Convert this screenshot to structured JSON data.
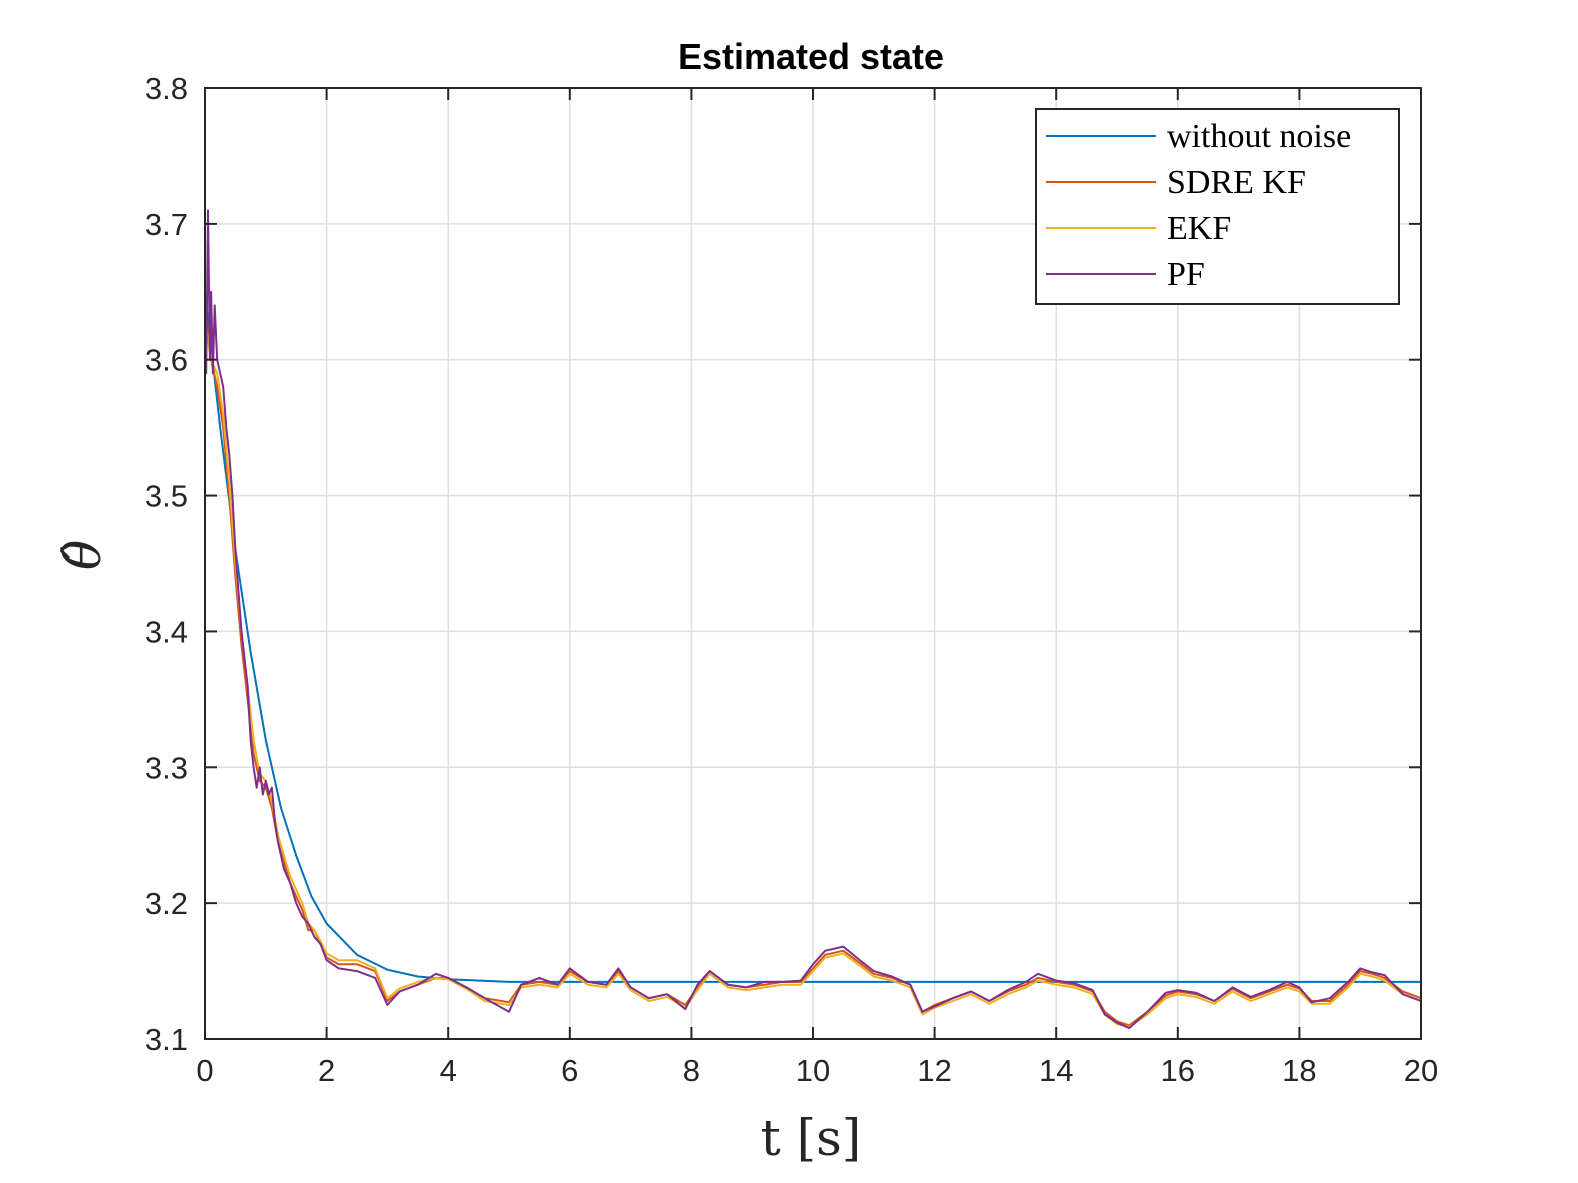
{
  "chart_data": {
    "type": "line",
    "title": "Estimated state",
    "xlabel": "t [s]",
    "ylabel": "θ̂",
    "xlim": [
      0,
      20
    ],
    "ylim": [
      3.1,
      3.8
    ],
    "xticks": [
      0,
      2,
      4,
      6,
      8,
      10,
      12,
      14,
      16,
      18,
      20
    ],
    "yticks": [
      3.1,
      3.2,
      3.3,
      3.4,
      3.5,
      3.6,
      3.7,
      3.8
    ],
    "xtick_labels": [
      "0",
      "2",
      "4",
      "6",
      "8",
      "10",
      "12",
      "14",
      "16",
      "18",
      "20"
    ],
    "ytick_labels": [
      "3.1",
      "3.2",
      "3.3",
      "3.4",
      "3.5",
      "3.6",
      "3.7",
      "3.8"
    ],
    "grid": true,
    "legend_position": "top-right",
    "series": [
      {
        "name": "without noise",
        "color": "#0072BD",
        "x": [
          0,
          0.25,
          0.5,
          0.75,
          1.0,
          1.25,
          1.5,
          1.75,
          2.0,
          2.5,
          3.0,
          3.5,
          4.0,
          5.0,
          6.0,
          8.0,
          10.0,
          12.0,
          14.0,
          16.0,
          18.0,
          20.0
        ],
        "y": [
          3.65,
          3.55,
          3.46,
          3.385,
          3.32,
          3.27,
          3.235,
          3.205,
          3.185,
          3.162,
          3.151,
          3.146,
          3.144,
          3.142,
          3.142,
          3.142,
          3.142,
          3.142,
          3.142,
          3.142,
          3.142,
          3.142
        ]
      },
      {
        "name": "SDRE KF",
        "color": "#D95319",
        "x": [
          0,
          0.1,
          0.2,
          0.3,
          0.4,
          0.5,
          0.6,
          0.7,
          0.8,
          0.9,
          1.0,
          1.1,
          1.2,
          1.3,
          1.4,
          1.5,
          1.6,
          1.7,
          1.8,
          1.9,
          2.0,
          2.2,
          2.5,
          2.8,
          3.0,
          3.2,
          3.5,
          3.8,
          4.0,
          4.3,
          4.6,
          5.0,
          5.2,
          5.5,
          5.8,
          6.0,
          6.3,
          6.6,
          6.8,
          7.0,
          7.3,
          7.6,
          7.9,
          8.1,
          8.3,
          8.6,
          8.9,
          9.2,
          9.5,
          9.8,
          10.0,
          10.2,
          10.5,
          10.8,
          11.0,
          11.3,
          11.6,
          11.8,
          12.0,
          12.3,
          12.6,
          12.9,
          13.2,
          13.5,
          13.7,
          14.0,
          14.3,
          14.6,
          14.8,
          15.0,
          15.2,
          15.5,
          15.8,
          16.0,
          16.3,
          16.6,
          16.9,
          17.2,
          17.5,
          17.8,
          18.0,
          18.2,
          18.5,
          18.8,
          19.0,
          19.2,
          19.4,
          19.7,
          20.0
        ],
        "y": [
          3.64,
          3.6,
          3.58,
          3.55,
          3.5,
          3.44,
          3.39,
          3.35,
          3.31,
          3.29,
          3.285,
          3.27,
          3.245,
          3.23,
          3.215,
          3.205,
          3.195,
          3.18,
          3.18,
          3.17,
          3.16,
          3.155,
          3.155,
          3.15,
          3.128,
          3.135,
          3.14,
          3.145,
          3.145,
          3.138,
          3.13,
          3.127,
          3.14,
          3.142,
          3.14,
          3.15,
          3.142,
          3.14,
          3.15,
          3.138,
          3.13,
          3.133,
          3.125,
          3.138,
          3.15,
          3.14,
          3.138,
          3.14,
          3.142,
          3.142,
          3.152,
          3.162,
          3.165,
          3.155,
          3.148,
          3.145,
          3.14,
          3.12,
          3.125,
          3.13,
          3.135,
          3.128,
          3.135,
          3.14,
          3.145,
          3.142,
          3.14,
          3.135,
          3.12,
          3.113,
          3.11,
          3.12,
          3.132,
          3.135,
          3.133,
          3.128,
          3.137,
          3.13,
          3.135,
          3.14,
          3.137,
          3.128,
          3.128,
          3.14,
          3.15,
          3.148,
          3.145,
          3.135,
          3.13
        ]
      },
      {
        "name": "EKF",
        "color": "#EDB120",
        "x": [
          0,
          0.1,
          0.2,
          0.3,
          0.4,
          0.5,
          0.6,
          0.7,
          0.8,
          0.9,
          1.0,
          1.1,
          1.2,
          1.3,
          1.4,
          1.5,
          1.6,
          1.7,
          1.8,
          1.9,
          2.0,
          2.2,
          2.5,
          2.8,
          3.0,
          3.2,
          3.5,
          3.8,
          4.0,
          4.3,
          4.6,
          5.0,
          5.2,
          5.5,
          5.8,
          6.0,
          6.3,
          6.6,
          6.8,
          7.0,
          7.3,
          7.6,
          7.9,
          8.1,
          8.3,
          8.6,
          8.9,
          9.2,
          9.5,
          9.8,
          10.0,
          10.2,
          10.5,
          10.8,
          11.0,
          11.3,
          11.6,
          11.8,
          12.0,
          12.3,
          12.6,
          12.9,
          13.2,
          13.5,
          13.7,
          14.0,
          14.3,
          14.6,
          14.8,
          15.0,
          15.2,
          15.5,
          15.8,
          16.0,
          16.3,
          16.6,
          16.9,
          17.2,
          17.5,
          17.8,
          18.0,
          18.2,
          18.5,
          18.8,
          19.0,
          19.2,
          19.4,
          19.7,
          20.0
        ],
        "y": [
          3.63,
          3.6,
          3.59,
          3.56,
          3.51,
          3.45,
          3.4,
          3.36,
          3.32,
          3.295,
          3.29,
          3.275,
          3.25,
          3.235,
          3.22,
          3.21,
          3.2,
          3.185,
          3.18,
          3.172,
          3.163,
          3.158,
          3.158,
          3.152,
          3.13,
          3.137,
          3.142,
          3.145,
          3.144,
          3.137,
          3.128,
          3.125,
          3.138,
          3.14,
          3.138,
          3.148,
          3.14,
          3.138,
          3.148,
          3.136,
          3.128,
          3.131,
          3.123,
          3.136,
          3.148,
          3.138,
          3.136,
          3.138,
          3.14,
          3.14,
          3.15,
          3.16,
          3.163,
          3.153,
          3.146,
          3.143,
          3.138,
          3.118,
          3.123,
          3.128,
          3.133,
          3.126,
          3.133,
          3.138,
          3.143,
          3.14,
          3.138,
          3.133,
          3.118,
          3.111,
          3.109,
          3.118,
          3.13,
          3.133,
          3.131,
          3.126,
          3.135,
          3.128,
          3.133,
          3.138,
          3.135,
          3.126,
          3.126,
          3.138,
          3.148,
          3.146,
          3.143,
          3.133,
          3.128
        ]
      },
      {
        "name": "PF",
        "color": "#7E2F8E",
        "x": [
          0,
          0.02,
          0.05,
          0.08,
          0.1,
          0.13,
          0.16,
          0.2,
          0.25,
          0.3,
          0.35,
          0.4,
          0.45,
          0.5,
          0.55,
          0.6,
          0.65,
          0.7,
          0.75,
          0.8,
          0.85,
          0.9,
          0.95,
          1.0,
          1.05,
          1.1,
          1.15,
          1.2,
          1.3,
          1.4,
          1.5,
          1.6,
          1.7,
          1.8,
          1.9,
          2.0,
          2.2,
          2.5,
          2.8,
          3.0,
          3.2,
          3.5,
          3.8,
          4.0,
          4.3,
          4.6,
          5.0,
          5.2,
          5.5,
          5.8,
          6.0,
          6.3,
          6.6,
          6.8,
          7.0,
          7.3,
          7.6,
          7.9,
          8.1,
          8.3,
          8.6,
          8.9,
          9.2,
          9.5,
          9.8,
          10.0,
          10.2,
          10.5,
          10.8,
          11.0,
          11.3,
          11.6,
          11.8,
          12.0,
          12.3,
          12.6,
          12.9,
          13.2,
          13.5,
          13.7,
          14.0,
          14.3,
          14.6,
          14.8,
          15.0,
          15.2,
          15.5,
          15.8,
          16.0,
          16.3,
          16.6,
          16.9,
          17.2,
          17.5,
          17.8,
          18.0,
          18.2,
          18.5,
          18.8,
          19.0,
          19.2,
          19.4,
          19.7,
          20.0
        ],
        "y": [
          3.64,
          3.59,
          3.71,
          3.6,
          3.65,
          3.59,
          3.64,
          3.6,
          3.59,
          3.58,
          3.55,
          3.53,
          3.5,
          3.46,
          3.43,
          3.4,
          3.38,
          3.36,
          3.32,
          3.3,
          3.285,
          3.3,
          3.28,
          3.29,
          3.28,
          3.285,
          3.26,
          3.245,
          3.225,
          3.215,
          3.2,
          3.19,
          3.185,
          3.175,
          3.17,
          3.158,
          3.152,
          3.15,
          3.145,
          3.125,
          3.135,
          3.14,
          3.148,
          3.145,
          3.138,
          3.13,
          3.12,
          3.14,
          3.145,
          3.14,
          3.152,
          3.142,
          3.14,
          3.152,
          3.138,
          3.13,
          3.133,
          3.122,
          3.14,
          3.15,
          3.14,
          3.138,
          3.142,
          3.142,
          3.143,
          3.155,
          3.165,
          3.168,
          3.157,
          3.15,
          3.146,
          3.14,
          3.12,
          3.124,
          3.13,
          3.135,
          3.128,
          3.136,
          3.142,
          3.148,
          3.143,
          3.141,
          3.136,
          3.118,
          3.112,
          3.108,
          3.12,
          3.134,
          3.136,
          3.134,
          3.128,
          3.138,
          3.131,
          3.136,
          3.142,
          3.138,
          3.127,
          3.13,
          3.142,
          3.152,
          3.149,
          3.147,
          3.133,
          3.128
        ]
      }
    ]
  }
}
